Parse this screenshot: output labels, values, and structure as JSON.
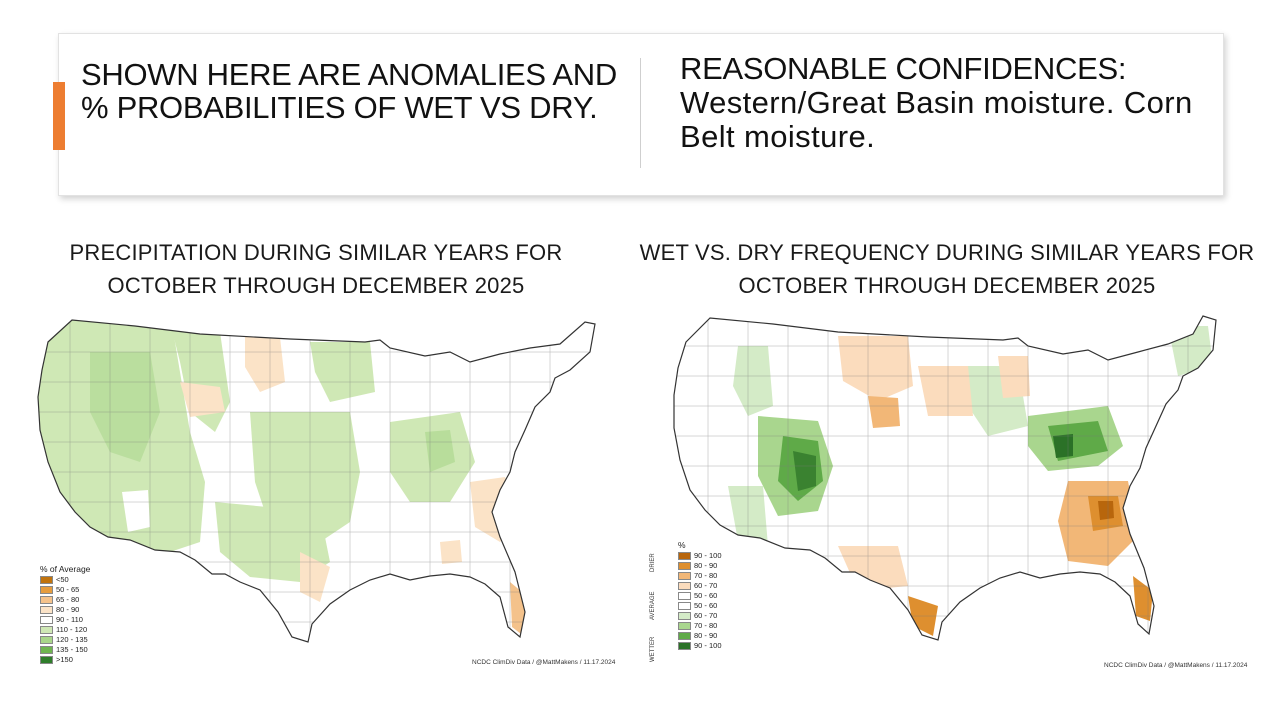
{
  "header": {
    "left_text": "SHOWN HERE ARE ANOMALIES AND % PROBABILITIES OF WET VS DRY.",
    "right_title": "REASONABLE CONFIDENCES:",
    "right_body": "Western/Great Basin moisture. Corn Belt moisture."
  },
  "left_map": {
    "title": "PRECIPITATION DURING SIMILAR YEARS FOR OCTOBER THROUGH DECEMBER 2025",
    "legend_title": "% of Average",
    "legend": [
      {
        "label": "<50",
        "color": "#c0730d"
      },
      {
        "label": "50 - 65",
        "color": "#e59c3e"
      },
      {
        "label": "65 - 80",
        "color": "#f4c28b"
      },
      {
        "label": "80 - 90",
        "color": "#fbe3c7"
      },
      {
        "label": "90 - 110",
        "color": "#ffffff"
      },
      {
        "label": "110 - 120",
        "color": "#cfe8b5"
      },
      {
        "label": "120 - 135",
        "color": "#a9d68a"
      },
      {
        "label": "135 - 150",
        "color": "#6fb550"
      },
      {
        "label": ">150",
        "color": "#2f7d2b"
      }
    ],
    "credit": "NCDC ClimDiv Data / @MattMakens / 11.17.2024"
  },
  "right_map": {
    "title": "WET VS. DRY FREQUENCY DURING SIMILAR YEARS FOR OCTOBER THROUGH DECEMBER 2025",
    "legend_title": "%",
    "legend": [
      {
        "label": "90 - 100",
        "color": "#b8660c"
      },
      {
        "label": "80 - 90",
        "color": "#de8f2f"
      },
      {
        "label": "70 - 80",
        "color": "#f2b777"
      },
      {
        "label": "60 - 70",
        "color": "#fbdcbd"
      },
      {
        "label": "50 - 60",
        "color": "#ffffff"
      },
      {
        "label": "50 - 60",
        "color": "#ffffff"
      },
      {
        "label": "60 - 70",
        "color": "#d4ebc7"
      },
      {
        "label": "70 - 80",
        "color": "#a9d68e"
      },
      {
        "label": "80 - 90",
        "color": "#5faa48"
      },
      {
        "label": "90 - 100",
        "color": "#2b7127"
      }
    ],
    "side_labels": [
      "DRIER",
      "AVERAGE",
      "WETTER"
    ],
    "credit": "NCDC ClimDiv Data / @MattMakens / 11.17.2024"
  },
  "colors": {
    "accent": "#ed7d31",
    "wet_light": "#cfe8b5",
    "wet_mid": "#a9d68a",
    "wet_dark": "#2f7d2b",
    "dry_light": "#fbe3c7",
    "dry_mid": "#f2b777",
    "dry_dark": "#c0730d",
    "border": "#555555"
  }
}
